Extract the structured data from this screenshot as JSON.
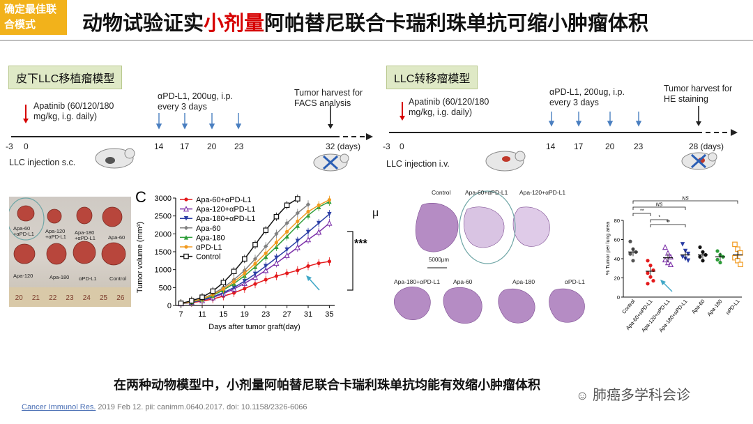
{
  "header": {
    "badge_line1": "确定最佳联",
    "badge_line2": "合模式",
    "title_pre": "动物试验证实",
    "title_highlight": "小剂量",
    "title_post": "阿帕替尼联合卡瑞利珠单抗可缩小肿瘤体积",
    "highlight_color": "#d60000"
  },
  "left_model": {
    "tag": "皮下LLC移植瘤模型",
    "apatinib_line1": "Apatinib (60/120/180",
    "apatinib_line2": "mg/kg, i.g. daily)",
    "pdl1_line1": "αPD-L1, 200ug, i.p.",
    "pdl1_line2": "every 3 days",
    "harvest_line1": "Tumor harvest for",
    "harvest_line2": "FACS analysis",
    "ticks": [
      "-3",
      "0",
      "14",
      "17",
      "20",
      "23",
      "32 (days)"
    ],
    "injection": "LLC injection s.c."
  },
  "right_model": {
    "tag": "LLC转移瘤模型",
    "apatinib_line1": "Apatinib (60/120/180",
    "apatinib_line2": "mg/kg, i.g. daily)",
    "pdl1_line1": "αPD-L1, 200ug, i.p.",
    "pdl1_line2": "every 3 days",
    "harvest_line1": "Tumor harvest for",
    "harvest_line2": "HE staining",
    "ticks": [
      "-3",
      "0",
      "14",
      "17",
      "20",
      "23",
      "28 (days)"
    ],
    "injection": "LLC injection i.v."
  },
  "photo": {
    "labels": [
      "Apa-60 +αPD-L1",
      "Apa-120 +αPD-L1",
      "Apa-180 +αPD-L1",
      "Apa-60",
      "Apa-120",
      "Apa-180",
      "αPD-L1",
      "Control"
    ],
    "ruler": [
      "20",
      "21",
      "22",
      "23",
      "24",
      "25",
      "26"
    ]
  },
  "chart_data": [
    {
      "type": "line",
      "panel_label": "C",
      "ylabel": "Tumor volume (mm³)",
      "xlabel": "Days after tumor graft(day)",
      "x": [
        7,
        9,
        11,
        13,
        15,
        17,
        19,
        21,
        23,
        25,
        27,
        29,
        31,
        33,
        35
      ],
      "xticks": [
        7,
        11,
        15,
        19,
        23,
        27,
        31,
        35
      ],
      "yticks": [
        0,
        500,
        1000,
        1500,
        2000,
        2500,
        3000
      ],
      "xlim": [
        6,
        36
      ],
      "ylim": [
        0,
        3000
      ],
      "significance": "***",
      "series": [
        {
          "name": "Apa-60+αPD-L1",
          "color": "#e41a1c",
          "marker": "dot",
          "values": [
            50,
            80,
            120,
            180,
            260,
            350,
            470,
            600,
            720,
            820,
            900,
            980,
            1100,
            1180,
            1230
          ]
        },
        {
          "name": "Apa-120+αPD-L1",
          "color": "#7b2fa8",
          "marker": "triangle-open",
          "values": [
            50,
            90,
            140,
            220,
            330,
            460,
            620,
            790,
            980,
            1180,
            1400,
            1620,
            1840,
            2050,
            2300
          ]
        },
        {
          "name": "Apa-180+αPD-L1",
          "color": "#2b3ea5",
          "marker": "triangle-down",
          "values": [
            50,
            90,
            150,
            240,
            360,
            500,
            680,
            880,
            1100,
            1330,
            1560,
            1800,
            2050,
            2300,
            2550
          ]
        },
        {
          "name": "Apa-60",
          "color": "#808080",
          "marker": "diamond",
          "values": [
            55,
            110,
            190,
            320,
            500,
            720,
            980,
            1300,
            1650,
            2000,
            2300,
            2580,
            2820,
            null,
            null
          ]
        },
        {
          "name": "Apa-180",
          "color": "#2e9e3a",
          "marker": "triangle",
          "values": [
            55,
            100,
            170,
            280,
            430,
            610,
            830,
            1080,
            1360,
            1640,
            1930,
            2230,
            2520,
            2750,
            2900
          ]
        },
        {
          "name": "αPD-L1",
          "color": "#f29a1f",
          "marker": "dot",
          "values": [
            55,
            110,
            180,
            300,
            460,
            660,
            900,
            1170,
            1460,
            1760,
            2060,
            2350,
            2620,
            2800,
            2950
          ]
        },
        {
          "name": "Control",
          "color": "#111111",
          "marker": "square-open",
          "values": [
            60,
            130,
            230,
            400,
            640,
            950,
            1300,
            1700,
            2100,
            2480,
            2800,
            2980,
            null,
            null,
            null
          ]
        }
      ]
    },
    {
      "type": "scatter",
      "ylabel": "% Tumor per lung area",
      "categories": [
        "Control",
        "Apa-60+αPD-L1",
        "Apa-120+αPD-L1",
        "Apa-180+αPD-L1",
        "Apa-60",
        "Apa-180",
        "αPD-L1"
      ],
      "colors": [
        "#555555",
        "#e41a1c",
        "#7b2fa8",
        "#2b3ea5",
        "#111111",
        "#2e9e3a",
        "#f29a1f"
      ],
      "means": [
        47,
        27,
        41,
        44,
        44,
        42,
        44
      ],
      "points": [
        [
          58,
          50,
          47,
          45,
          38
        ],
        [
          38,
          33,
          28,
          25,
          21,
          17,
          14
        ],
        [
          52,
          46,
          42,
          39,
          36,
          34
        ],
        [
          55,
          48,
          45,
          42,
          40,
          38
        ],
        [
          52,
          47,
          44,
          42,
          38
        ],
        [
          48,
          44,
          42,
          39,
          36
        ],
        [
          55,
          50,
          46,
          41,
          38,
          34
        ]
      ],
      "ylim": [
        0,
        80
      ],
      "yticks": [
        0,
        20,
        40,
        60,
        80
      ],
      "brackets": [
        "NS",
        "NS",
        "**",
        "*",
        "**"
      ]
    }
  ],
  "he_panel": {
    "labels_top": [
      "Control",
      "Apa-60+αPD-L1",
      "Apa-120+αPD-L1"
    ],
    "labels_bottom": [
      "Apa-180+αPD-L1",
      "Apa-60",
      "Apa-180",
      "αPD-L1"
    ],
    "scale": "5000μm"
  },
  "mu_glyph": "μ",
  "summary": "在两种动物模型中，小剂量阿帕替尼联合卡瑞利珠单抗均能有效缩小肿瘤体积",
  "watermark": "肺癌多学科会诊",
  "footer": {
    "journal": "Cancer Immunol Res.",
    "citation": " 2019 Feb 12. pii: canimm.0640.2017.  doi: 10.1158/2326-6066"
  }
}
